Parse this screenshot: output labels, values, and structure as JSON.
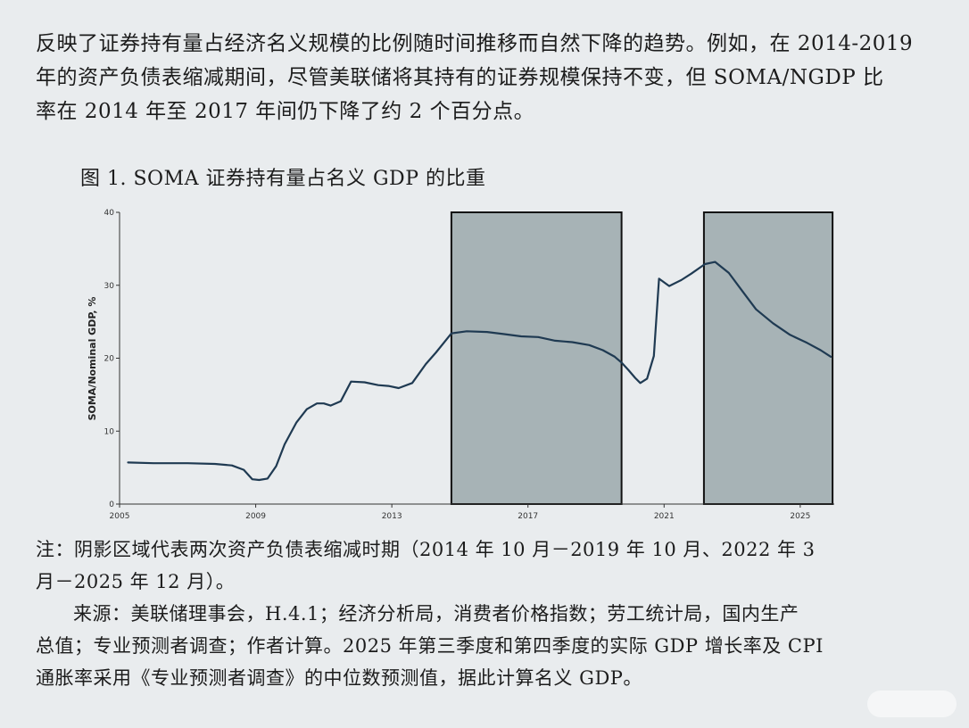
{
  "intro": {
    "line1": "反映了证券持有量占经济名义规模的比例随时间推移而自然下降的趋势。例如，在 2014-2019",
    "line2": "年的资产负债表缩减期间，尽管美联储将其持有的证券规模保持不变，但 SOMA/NGDP 比",
    "line3": "率在 2014 年至 2017 年间仍下降了约 2 个百分点。"
  },
  "figure_title": "图 1. SOMA 证券持有量占名义 GDP 的比重",
  "chart_data": {
    "type": "line",
    "title": "",
    "xlabel": "",
    "ylabel": "SOMA/Nominal GDP, %",
    "xlim": [
      2005,
      2026
    ],
    "ylim": [
      0,
      40
    ],
    "x_ticks": [
      2005,
      2009,
      2013,
      2017,
      2021,
      2025
    ],
    "y_ticks": [
      0,
      10,
      20,
      30,
      40
    ],
    "grid": false,
    "legend": "none",
    "line_color": "#1f3a52",
    "shade_color": "#a7b3b6",
    "shaded_periods": [
      {
        "start": 2014.75,
        "end": 2019.75
      },
      {
        "start": 2022.17,
        "end": 2025.95
      }
    ],
    "series": [
      {
        "x": [
          2005.25,
          2006.0,
          2007.0,
          2007.8,
          2008.3,
          2008.65,
          2008.9,
          2009.1,
          2009.35,
          2009.6,
          2009.85,
          2010.2,
          2010.5,
          2010.8,
          2011.0,
          2011.2,
          2011.5,
          2011.8,
          2012.2,
          2012.6,
          2012.9,
          2013.2,
          2013.6,
          2014.0,
          2014.3,
          2014.75,
          2015.2,
          2015.8,
          2016.3,
          2016.8,
          2017.3,
          2017.8,
          2018.3,
          2018.8,
          2019.2,
          2019.55,
          2019.75,
          2019.95,
          2020.15,
          2020.3,
          2020.5,
          2020.7,
          2020.85,
          2021.15,
          2021.5,
          2021.8,
          2022.2,
          2022.5,
          2022.9,
          2023.3,
          2023.7,
          2024.2,
          2024.7,
          2025.2,
          2025.6,
          2025.9
        ],
        "y": [
          5.7,
          5.6,
          5.6,
          5.5,
          5.3,
          4.7,
          3.4,
          3.3,
          3.5,
          5.2,
          8.2,
          11.2,
          13.0,
          13.8,
          13.8,
          13.5,
          14.1,
          16.8,
          16.7,
          16.3,
          16.2,
          15.9,
          16.6,
          19.2,
          20.8,
          23.4,
          23.7,
          23.6,
          23.3,
          23.0,
          22.9,
          22.4,
          22.2,
          21.8,
          21.1,
          20.2,
          19.4,
          18.4,
          17.3,
          16.6,
          17.2,
          20.3,
          30.9,
          29.9,
          30.7,
          31.6,
          32.9,
          33.2,
          31.7,
          29.2,
          26.7,
          24.8,
          23.2,
          22.1,
          21.1,
          20.2
        ]
      }
    ]
  },
  "note": {
    "line1": "注：阴影区域代表两次资产负债表缩减时期（2014 年 10 月－2019 年 10 月、2022 年 3",
    "line2": "月－2025 年 12 月）。",
    "source_line1": "来源：美联储理事会，H.4.1；经济分析局，消费者价格指数；劳工统计局，国内生产",
    "source_line2": "总值；专业预测者调查；作者计算。2025 年第三季度和第四季度的实际 GDP 增长率及 CPI",
    "source_line3": "通胀率采用《专业预测者调查》的中位数预测值，据此计算名义 GDP。"
  }
}
